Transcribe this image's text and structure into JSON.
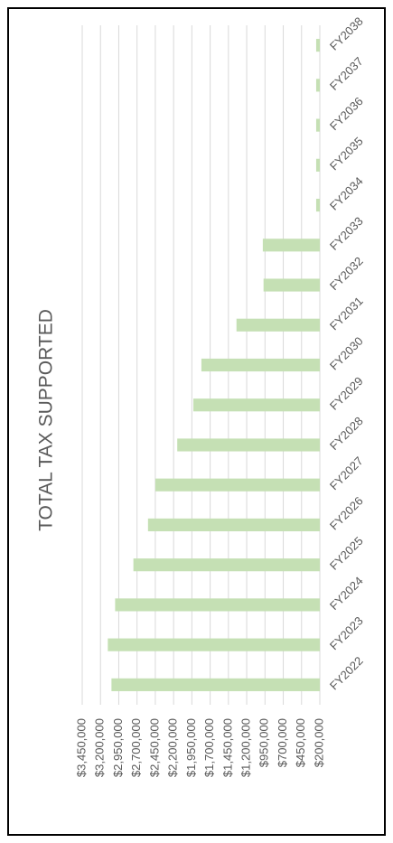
{
  "chart_data": {
    "type": "bar",
    "title": "TOTAL TAX SUPPORTED",
    "categories": [
      "FY2022",
      "FY2023",
      "FY2024",
      "FY2025",
      "FY2026",
      "FY2027",
      "FY2028",
      "FY2029",
      "FY2030",
      "FY2031",
      "FY2032",
      "FY2033",
      "FY2034",
      "FY2035",
      "FY2036",
      "FY2037",
      "FY2038"
    ],
    "values": [
      3050000,
      3100000,
      3000000,
      2750000,
      2550000,
      2450000,
      2150000,
      1930000,
      1820000,
      1340000,
      970000,
      980000,
      250000,
      250000,
      250000,
      250000,
      250000
    ],
    "color": "#c5e0b4",
    "ylim": [
      200000,
      3450000
    ],
    "yticks": [
      {
        "value": 200000,
        "label": "$200,000"
      },
      {
        "value": 450000,
        "label": "$450,000"
      },
      {
        "value": 700000,
        "label": "$700,000"
      },
      {
        "value": 950000,
        "label": "$950,000"
      },
      {
        "value": 1200000,
        "label": "$1,200,000"
      },
      {
        "value": 1450000,
        "label": "$1,450,000"
      },
      {
        "value": 1700000,
        "label": "$1,700,000"
      },
      {
        "value": 1950000,
        "label": "$1,950,000"
      },
      {
        "value": 2200000,
        "label": "$2,200,000"
      },
      {
        "value": 2450000,
        "label": "$2,450,000"
      },
      {
        "value": 2700000,
        "label": "$2,700,000"
      },
      {
        "value": 2950000,
        "label": "$2,950,000"
      },
      {
        "value": 3200000,
        "label": "$3,200,000"
      },
      {
        "value": 3450000,
        "label": "$3,450,000"
      }
    ],
    "grid": true
  }
}
